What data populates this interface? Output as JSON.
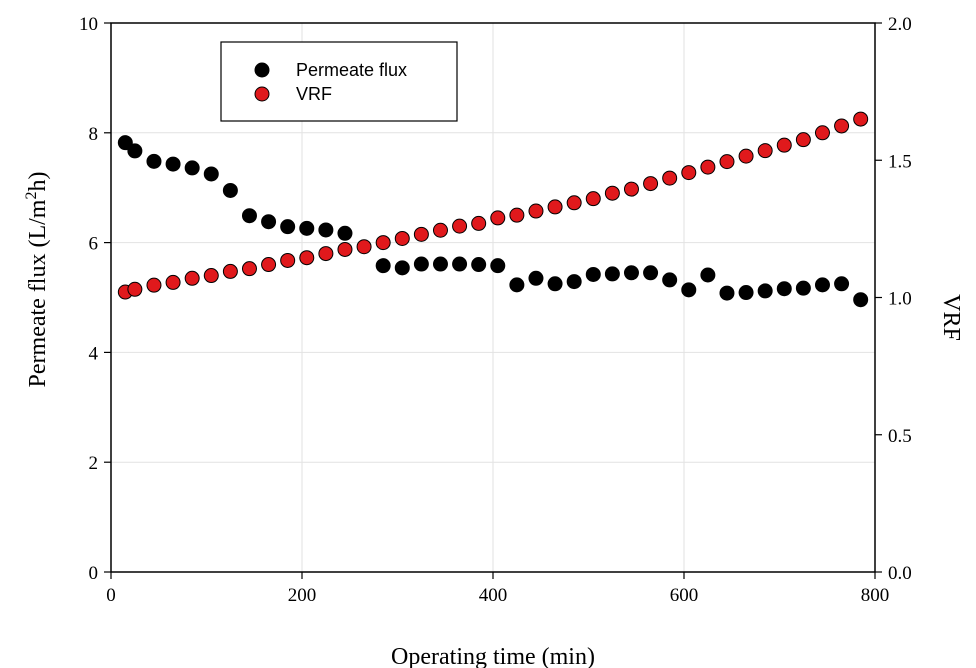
{
  "chart_data": {
    "type": "scatter",
    "title": "",
    "xlabel": "Operating time (min)",
    "ylabel_left": {
      "main": "Permeate flux (L/m",
      "superscript": "2",
      "tail": "h)"
    },
    "ylabel_right": "VRF",
    "xlim": [
      0,
      800
    ],
    "ylim_left": [
      0,
      10
    ],
    "ylim_right": [
      0,
      2
    ],
    "x_ticks": [
      "0",
      "200",
      "400",
      "600",
      "800"
    ],
    "y_left_ticks": [
      "0",
      "2",
      "4",
      "6",
      "8",
      "10"
    ],
    "y_right_ticks": [
      "0.0",
      "0.5",
      "1.0",
      "1.5",
      "2.0"
    ],
    "grid": true,
    "legend_position": "top-left",
    "series": [
      {
        "name": "Permeate flux",
        "axis": "left",
        "color": "#000000",
        "x": [
          15,
          25,
          45,
          65,
          85,
          105,
          125,
          145,
          165,
          185,
          205,
          225,
          245,
          285,
          305,
          325,
          345,
          365,
          385,
          405,
          425,
          445,
          465,
          485,
          505,
          525,
          545,
          565,
          585,
          605,
          625,
          645,
          665,
          685,
          705,
          725,
          745,
          765,
          785
        ],
        "y": [
          7.82,
          7.67,
          7.48,
          7.43,
          7.36,
          7.25,
          6.95,
          6.49,
          6.38,
          6.29,
          6.26,
          6.23,
          6.17,
          5.58,
          5.54,
          5.61,
          5.61,
          5.61,
          5.6,
          5.58,
          5.23,
          5.35,
          5.25,
          5.29,
          5.42,
          5.43,
          5.45,
          5.45,
          5.32,
          5.14,
          5.41,
          5.08,
          5.09,
          5.12,
          5.16,
          5.17,
          5.23,
          5.25,
          4.96
        ]
      },
      {
        "name": "VRF",
        "axis": "right",
        "color": "#e0191c",
        "x": [
          15,
          25,
          45,
          65,
          85,
          105,
          125,
          145,
          165,
          185,
          205,
          225,
          245,
          265,
          285,
          305,
          325,
          345,
          365,
          385,
          405,
          425,
          445,
          465,
          485,
          505,
          525,
          545,
          565,
          585,
          605,
          625,
          645,
          665,
          685,
          705,
          725,
          745,
          765,
          785
        ],
        "y": [
          1.02,
          1.03,
          1.045,
          1.055,
          1.07,
          1.08,
          1.095,
          1.105,
          1.12,
          1.135,
          1.145,
          1.16,
          1.175,
          1.185,
          1.2,
          1.215,
          1.23,
          1.245,
          1.26,
          1.27,
          1.29,
          1.3,
          1.315,
          1.33,
          1.345,
          1.36,
          1.38,
          1.395,
          1.415,
          1.435,
          1.455,
          1.475,
          1.495,
          1.515,
          1.535,
          1.555,
          1.575,
          1.6,
          1.625,
          1.65
        ]
      }
    ]
  }
}
